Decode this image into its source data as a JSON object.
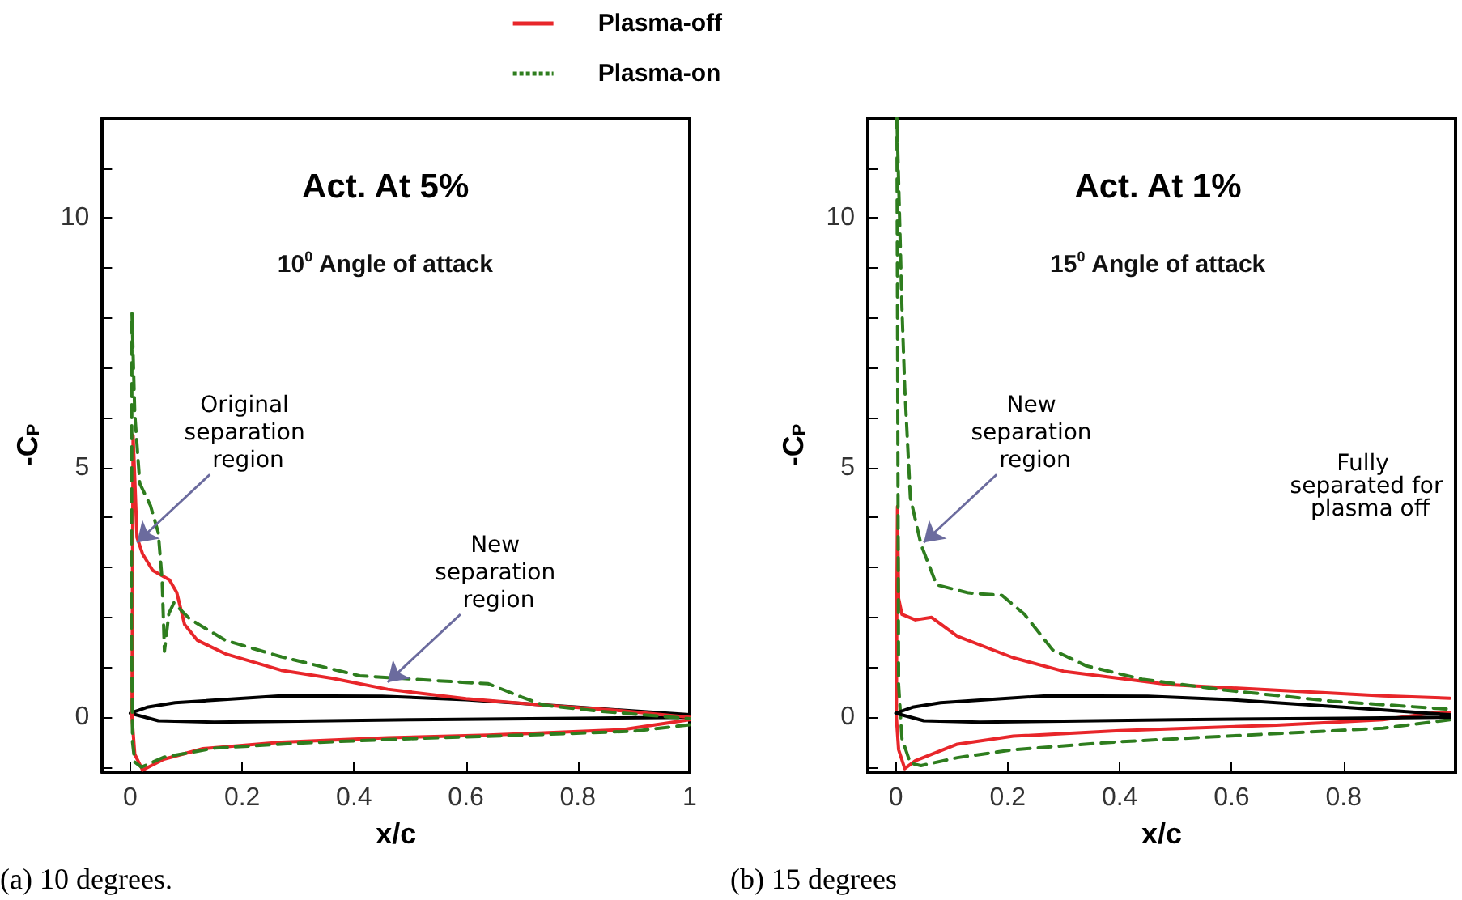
{
  "chart_data": [
    {
      "type": "line",
      "title": "Act. At 5%",
      "subtitle": "10$^{0}$ Angle of attack",
      "xlabel": "x/c",
      "ylabel": "-C$_{P}$",
      "xlim": [
        -0.05,
        1
      ],
      "ylim": [
        -1.1,
        12
      ],
      "xticks": [
        0,
        0.2,
        0.4,
        0.6,
        0.8,
        1
      ],
      "yticks": [
        {
          "value": -1,
          "label": null
        },
        0,
        {
          "value": 1,
          "label": null
        },
        {
          "value": 2,
          "label": null
        },
        {
          "value": 3,
          "label": null
        },
        {
          "value": 4,
          "label": null
        },
        5,
        {
          "value": 6,
          "label": null
        },
        {
          "value": 7,
          "label": null
        },
        {
          "value": 8,
          "label": null
        },
        {
          "value": 9,
          "label": null
        },
        10,
        {
          "value": 11,
          "label": null
        }
      ],
      "legend": "top right",
      "series": [
        {
          "name": "Plasma-off",
          "color": "#e8262a",
          "line_style": "solid",
          "x": [
            1,
            0.88,
            0.64,
            0.46,
            0.27,
            0.13,
            0.06,
            0.022,
            0.008,
            0.003,
            0.004,
            0.005,
            0.012,
            0.022,
            0.04,
            0.07,
            0.083,
            0.097,
            0.12,
            0.17,
            0.27,
            0.36,
            0.46,
            0.6,
            0.74,
            0.88,
            1
          ],
          "values": [
            -0.05,
            -0.25,
            -0.36,
            -0.41,
            -0.5,
            -0.63,
            -0.84,
            -1.06,
            -0.74,
            0,
            3,
            5.65,
            3.6,
            3.27,
            2.94,
            2.75,
            2.5,
            1.86,
            1.54,
            1.27,
            0.94,
            0.78,
            0.56,
            0.37,
            0.24,
            0.13,
            0
          ]
        },
        {
          "name": "Plasma-on",
          "color": "#2e7d1e",
          "line_style": "dashed",
          "x": [
            1,
            0.9,
            0.7,
            0.5,
            0.3,
            0.15,
            0.06,
            0.02,
            0.008,
            0.004,
            0.002,
            0.003,
            0.008,
            0.017,
            0.036,
            0.05,
            0.057,
            0.061,
            0.069,
            0.078,
            0.106,
            0.17,
            0.27,
            0.41,
            0.55,
            0.64,
            0.7,
            0.74,
            0.83,
            1
          ],
          "values": [
            -0.15,
            -0.28,
            -0.36,
            -0.43,
            -0.52,
            -0.62,
            -0.8,
            -1,
            -0.9,
            -0.5,
            2,
            8.1,
            6.08,
            4.68,
            4.24,
            3.7,
            2.73,
            1.32,
            2.08,
            2.29,
            1.97,
            1.54,
            1.21,
            0.83,
            0.73,
            0.67,
            0.4,
            0.24,
            0.13,
            -0.03
          ]
        },
        {
          "color": "#000000",
          "line_style": "solid",
          "x": [
            1,
            0.8,
            0.6,
            0.45,
            0.27,
            0.08,
            0.03,
            0,
            0.05,
            0.15,
            0.3,
            0.5,
            0.8,
            1
          ],
          "values": [
            0.05,
            0.2,
            0.35,
            0.42,
            0.43,
            0.29,
            0.2,
            0.08,
            -0.07,
            -0.1,
            -0.08,
            -0.05,
            -0.02,
            0
          ]
        }
      ],
      "annotations": [
        {
          "text": "Original separation region",
          "x": 0.012,
          "y": 3.5
        },
        {
          "text": "New separation region",
          "x": 0.46,
          "y": 0.7
        },
        "(a) 10 degrees."
      ]
    },
    {
      "type": "line",
      "title": "Act. At 1%",
      "subtitle": "15$^{0}$ Angle of attack",
      "xlabel": "x/c",
      "ylabel": "-C$_{P}$",
      "xlim": [
        -0.05,
        1
      ],
      "ylim": [
        -1.1,
        12
      ],
      "xticks": [
        0,
        0.2,
        0.4,
        0.6,
        0.8
      ],
      "yticks": [
        {
          "value": -1,
          "label": null
        },
        0,
        {
          "value": 1,
          "label": null
        },
        {
          "value": 2,
          "label": null
        },
        {
          "value": 3,
          "label": null
        },
        {
          "value": 4,
          "label": null
        },
        5,
        {
          "value": 6,
          "label": null
        },
        {
          "value": 7,
          "label": null
        },
        {
          "value": 8,
          "label": null
        },
        {
          "value": 9,
          "label": null
        },
        10,
        {
          "value": 11,
          "label": null
        }
      ],
      "series": [
        {
          "color": "#e8262a",
          "line_style": "solid",
          "x": [
            0.99,
            0.97,
            0.87,
            0.68,
            0.4,
            0.21,
            0.11,
            0.035,
            0.016,
            0.005,
            0.001,
            0.002,
            0.003,
            0.005,
            0.011,
            0.035,
            0.064,
            0.11,
            0.21,
            0.3,
            0.49,
            0.68,
            0.87,
            0.99
          ],
          "values": [
            0.1,
            0.1,
            -0.05,
            -0.16,
            -0.27,
            -0.38,
            -0.54,
            -0.87,
            -1.03,
            -0.65,
            0,
            2.5,
            4.22,
            2.38,
            2.06,
            1.95,
            2,
            1.62,
            1.19,
            0.92,
            0.65,
            0.54,
            0.43,
            0.38
          ]
        },
        {
          "color": "#2e7d1e",
          "line_style": "dashed",
          "x": [
            0.99,
            0.87,
            0.59,
            0.4,
            0.21,
            0.11,
            0.045,
            0.026,
            0.011,
            0.005,
            0.002,
            0.011,
            0.016,
            0.026,
            0.045,
            0.073,
            0.13,
            0.19,
            0.23,
            0.28,
            0.34,
            0.44,
            0.59,
            0.78,
            0.99
          ],
          "values": [
            -0.05,
            -0.22,
            -0.38,
            -0.49,
            -0.65,
            -0.81,
            -0.97,
            -0.92,
            -0.43,
            0.65,
            12,
            8.2,
            6.6,
            4.4,
            3.46,
            2.65,
            2.49,
            2.44,
            2.06,
            1.35,
            1.03,
            0.76,
            0.54,
            0.32,
            0.16
          ]
        },
        {
          "color": "#000000",
          "line_style": "solid",
          "x": [
            0.99,
            0.8,
            0.6,
            0.45,
            0.27,
            0.08,
            0.03,
            0,
            0.05,
            0.15,
            0.3,
            0.5,
            0.8,
            0.99
          ],
          "values": [
            0.05,
            0.2,
            0.35,
            0.42,
            0.43,
            0.29,
            0.2,
            0.08,
            -0.07,
            -0.1,
            -0.08,
            -0.05,
            -0.02,
            0
          ]
        }
      ],
      "annotations": [
        {
          "text": "New separation region",
          "x": 0.05,
          "y": 3.5
        },
        "Fully separated for plasma off",
        "(b) 15 degrees"
      ]
    }
  ]
}
